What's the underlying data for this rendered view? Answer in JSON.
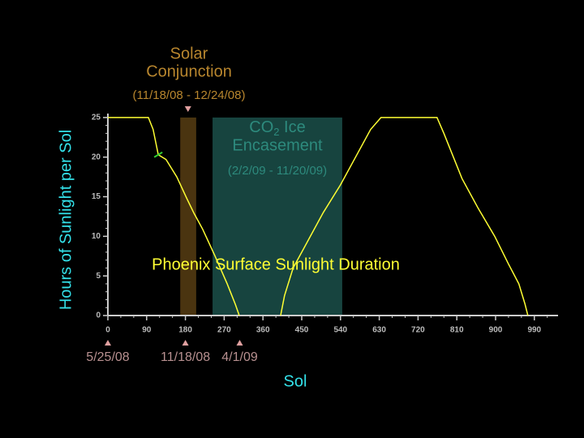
{
  "chart_data": {
    "type": "line",
    "title": "Phoenix Surface Sunlight Duration",
    "xlabel": "Sol",
    "ylabel": "Hours of Sunlight per Sol",
    "xlim": [
      0,
      1045
    ],
    "ylim": [
      0,
      25.5
    ],
    "xticks": [
      0,
      90,
      180,
      270,
      360,
      450,
      540,
      630,
      720,
      810,
      900,
      990
    ],
    "yticks": [
      0,
      5,
      10,
      15,
      20,
      25
    ],
    "xminor": 30,
    "yminor": 1,
    "series": [
      {
        "color": "#ffff33",
        "x": [
          0,
          94,
          105,
          117,
          135,
          160,
          183,
          200,
          220,
          248,
          277,
          296,
          305,
          350,
          401,
          410,
          430,
          465,
          500,
          540,
          580,
          610,
          634,
          764,
          780,
          822,
          860,
          898,
          930,
          954,
          968,
          975
        ],
        "values": [
          25,
          25,
          23.5,
          20.3,
          19.7,
          17.5,
          14.8,
          12.9,
          10.9,
          7.6,
          4,
          1.4,
          0,
          null,
          0,
          2.5,
          6,
          9.5,
          13,
          16.5,
          20.5,
          23.5,
          25,
          25,
          23,
          17.3,
          13.5,
          10,
          6.5,
          4,
          1.5,
          0
        ]
      }
    ],
    "marker": {
      "x": 117,
      "y": 20.3,
      "color": "#33cc33"
    },
    "spans": [
      {
        "xlim": [
          168,
          205
        ],
        "color": "#4a3410",
        "text_color": "#b8862e",
        "label_lines": [
          "Solar",
          "Conjunction"
        ],
        "sublabel": "(11/18/08 - 12/24/08)",
        "pointer": 186
      },
      {
        "xlim": [
          243,
          544
        ],
        "color": "#17443f",
        "text_color": "#2d8a7d",
        "label_main": "CO",
        "label_sub": "2",
        "label_rest": " Ice",
        "label_line2": "Encasement",
        "sublabel": "(2/2/09 - 11/20/09)"
      }
    ],
    "date_markers": [
      {
        "x": 0,
        "label": "5/25/08"
      },
      {
        "x": 180,
        "label": "11/18/08"
      },
      {
        "x": 306,
        "label": "4/1/09"
      }
    ]
  }
}
